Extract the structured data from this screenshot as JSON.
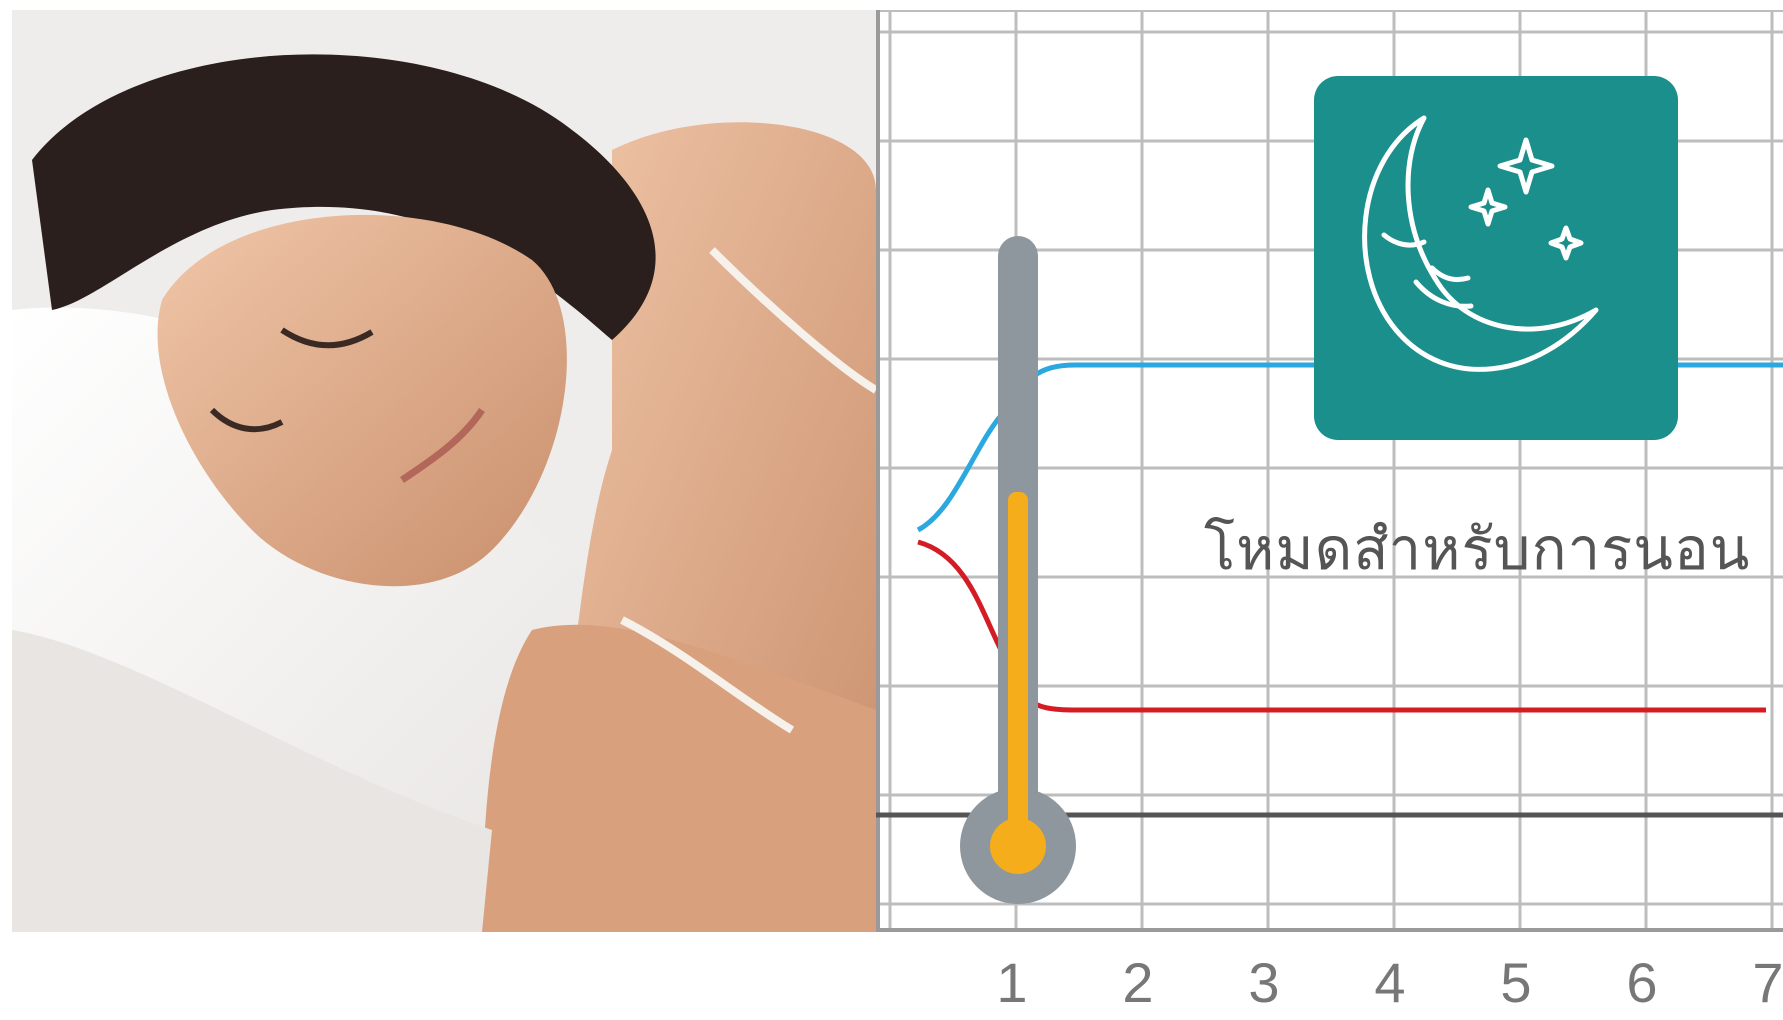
{
  "photo": {
    "subject": "woman-sleeping-on-pillow"
  },
  "mode_card": {
    "icon": "moon-stars-icon",
    "label": "โหมดสำหรับการนอน",
    "color": "#1a8f8c"
  },
  "thermometer": {
    "icon": "thermometer-icon",
    "fill_color": "#f5ad1b",
    "tube_color": "#8e979e"
  },
  "chart_data": {
    "type": "line",
    "x_ticks": [
      "1",
      "2",
      "3",
      "4",
      "5",
      "6",
      "7"
    ],
    "grid": true,
    "series": [
      {
        "color": "#2aa8df",
        "shape": "rises then holds level"
      },
      {
        "color": "#d41c24",
        "shape": "drops then holds level"
      }
    ]
  }
}
